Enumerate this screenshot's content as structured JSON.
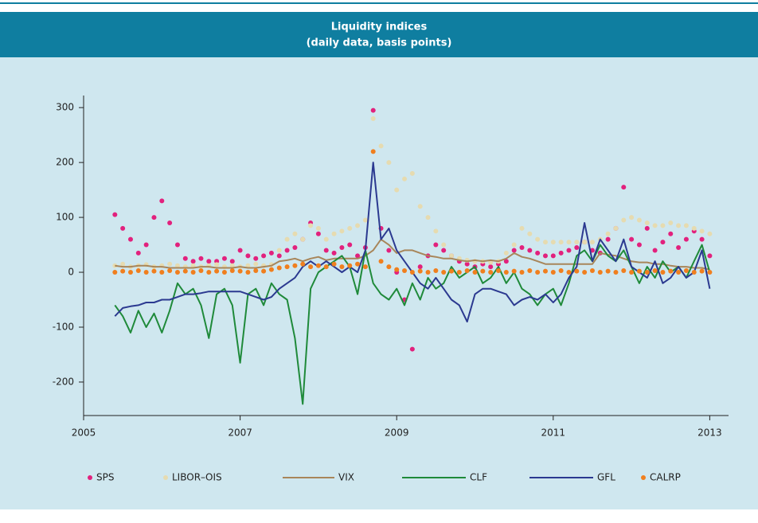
{
  "chart_data": {
    "type": "line",
    "title": "Liquidity indices",
    "subtitle": "(daily data, basis points)",
    "x": [
      2005.4,
      2005.5,
      2005.6,
      2005.7,
      2005.8,
      2005.9,
      2006.0,
      2006.1,
      2006.2,
      2006.3,
      2006.4,
      2006.5,
      2006.6,
      2006.7,
      2006.8,
      2006.9,
      2007.0,
      2007.1,
      2007.2,
      2007.3,
      2007.4,
      2007.5,
      2007.6,
      2007.7,
      2007.8,
      2007.9,
      2008.0,
      2008.1,
      2008.2,
      2008.3,
      2008.4,
      2008.5,
      2008.6,
      2008.7,
      2008.8,
      2008.9,
      2009.0,
      2009.1,
      2009.2,
      2009.3,
      2009.4,
      2009.5,
      2009.6,
      2009.7,
      2009.8,
      2009.9,
      2010.0,
      2010.1,
      2010.2,
      2010.3,
      2010.4,
      2010.5,
      2010.6,
      2010.7,
      2010.8,
      2010.9,
      2011.0,
      2011.1,
      2011.2,
      2011.3,
      2011.4,
      2011.5,
      2011.6,
      2011.7,
      2011.8,
      2011.9,
      2012.0,
      2012.1,
      2012.2,
      2012.3,
      2012.4,
      2012.5,
      2012.6,
      2012.7,
      2012.8,
      2012.9,
      2013.0
    ],
    "series": [
      {
        "name": "SPS",
        "color": "#e2217d",
        "marker": "dot",
        "values": [
          105,
          80,
          60,
          35,
          50,
          100,
          130,
          90,
          50,
          25,
          20,
          25,
          20,
          20,
          25,
          20,
          40,
          30,
          25,
          30,
          35,
          30,
          40,
          45,
          60,
          90,
          70,
          40,
          35,
          45,
          50,
          30,
          45,
          295,
          80,
          40,
          0,
          -50,
          -140,
          10,
          30,
          50,
          40,
          30,
          20,
          15,
          10,
          15,
          10,
          15,
          20,
          40,
          45,
          40,
          35,
          30,
          30,
          35,
          40,
          45,
          55,
          40,
          35,
          60,
          80,
          155,
          60,
          50,
          80,
          40,
          55,
          70,
          45,
          60,
          75,
          60,
          30
        ]
      },
      {
        "name": "LIBOR–OIS",
        "color": "#e6dbb0",
        "marker": "dot",
        "values": [
          12,
          15,
          10,
          12,
          14,
          10,
          12,
          15,
          12,
          10,
          12,
          10,
          12,
          14,
          10,
          12,
          10,
          12,
          15,
          12,
          14,
          40,
          60,
          70,
          60,
          85,
          80,
          60,
          70,
          75,
          80,
          85,
          95,
          280,
          230,
          200,
          150,
          170,
          180,
          120,
          100,
          75,
          50,
          30,
          25,
          22,
          20,
          20,
          18,
          20,
          35,
          50,
          80,
          70,
          60,
          55,
          55,
          55,
          55,
          55,
          55,
          55,
          60,
          70,
          80,
          95,
          100,
          95,
          90,
          85,
          85,
          90,
          85,
          85,
          80,
          75,
          70
        ]
      },
      {
        "name": "VIX",
        "color": "#a8865a",
        "marker": "line",
        "values": [
          12,
          10,
          10,
          12,
          12,
          10,
          10,
          8,
          8,
          8,
          8,
          10,
          10,
          8,
          8,
          8,
          10,
          8,
          8,
          10,
          12,
          20,
          22,
          25,
          20,
          25,
          28,
          22,
          25,
          25,
          25,
          25,
          30,
          40,
          60,
          50,
          35,
          40,
          40,
          35,
          30,
          28,
          25,
          25,
          22,
          20,
          22,
          20,
          22,
          20,
          25,
          35,
          28,
          25,
          20,
          15,
          15,
          15,
          15,
          15,
          15,
          15,
          35,
          32,
          30,
          25,
          20,
          18,
          18,
          15,
          15,
          12,
          10,
          10,
          8,
          8,
          5
        ]
      },
      {
        "name": "CLF",
        "color": "#1f8a3a",
        "marker": "line",
        "values": [
          -60,
          -80,
          -110,
          -70,
          -100,
          -75,
          -110,
          -70,
          -20,
          -40,
          -30,
          -60,
          -120,
          -40,
          -30,
          -60,
          -165,
          -40,
          -30,
          -60,
          -20,
          -40,
          -50,
          -120,
          -240,
          -30,
          0,
          10,
          20,
          30,
          10,
          -40,
          40,
          -20,
          -40,
          -50,
          -30,
          -60,
          -20,
          -50,
          -10,
          -30,
          -20,
          10,
          -10,
          0,
          10,
          -20,
          -10,
          10,
          -20,
          0,
          -30,
          -40,
          -60,
          -40,
          -30,
          -60,
          -20,
          30,
          40,
          20,
          50,
          30,
          20,
          40,
          10,
          -20,
          10,
          -10,
          20,
          0,
          10,
          -10,
          20,
          50,
          0
        ]
      },
      {
        "name": "GFL",
        "color": "#2b3990",
        "marker": "line",
        "values": [
          -80,
          -65,
          -62,
          -60,
          -55,
          -55,
          -50,
          -50,
          -45,
          -40,
          -40,
          -38,
          -35,
          -35,
          -35,
          -35,
          -35,
          -40,
          -45,
          -50,
          -45,
          -30,
          -20,
          -10,
          10,
          20,
          10,
          20,
          10,
          0,
          10,
          0,
          40,
          200,
          60,
          80,
          40,
          20,
          0,
          -20,
          -30,
          -10,
          -30,
          -50,
          -60,
          -90,
          -40,
          -30,
          -30,
          -35,
          -40,
          -60,
          -50,
          -45,
          -50,
          -40,
          -55,
          -40,
          -10,
          10,
          90,
          20,
          60,
          40,
          20,
          60,
          10,
          0,
          -10,
          20,
          -20,
          -10,
          10,
          -10,
          0,
          40,
          -30
        ]
      },
      {
        "name": "CALRP",
        "color": "#f07f1e",
        "marker": "dot",
        "values": [
          0,
          2,
          0,
          3,
          0,
          2,
          0,
          3,
          0,
          2,
          0,
          3,
          0,
          2,
          0,
          3,
          2,
          0,
          3,
          2,
          5,
          8,
          10,
          12,
          15,
          10,
          12,
          10,
          15,
          10,
          12,
          15,
          10,
          220,
          20,
          10,
          5,
          3,
          0,
          2,
          0,
          3,
          0,
          2,
          0,
          3,
          0,
          2,
          0,
          3,
          0,
          2,
          0,
          3,
          0,
          2,
          0,
          3,
          0,
          2,
          0,
          3,
          0,
          2,
          0,
          3,
          0,
          2,
          0,
          3,
          0,
          2,
          0,
          3,
          0,
          2,
          0
        ]
      }
    ],
    "xlim": [
      2005,
      2013.24
    ],
    "xticks": [
      2005,
      2007,
      2009,
      2011,
      2013
    ],
    "ylim": [
      -261,
      322
    ],
    "yticks": [
      -200,
      -100,
      0,
      100,
      200,
      300
    ],
    "grid": false,
    "legend": "bottom"
  }
}
